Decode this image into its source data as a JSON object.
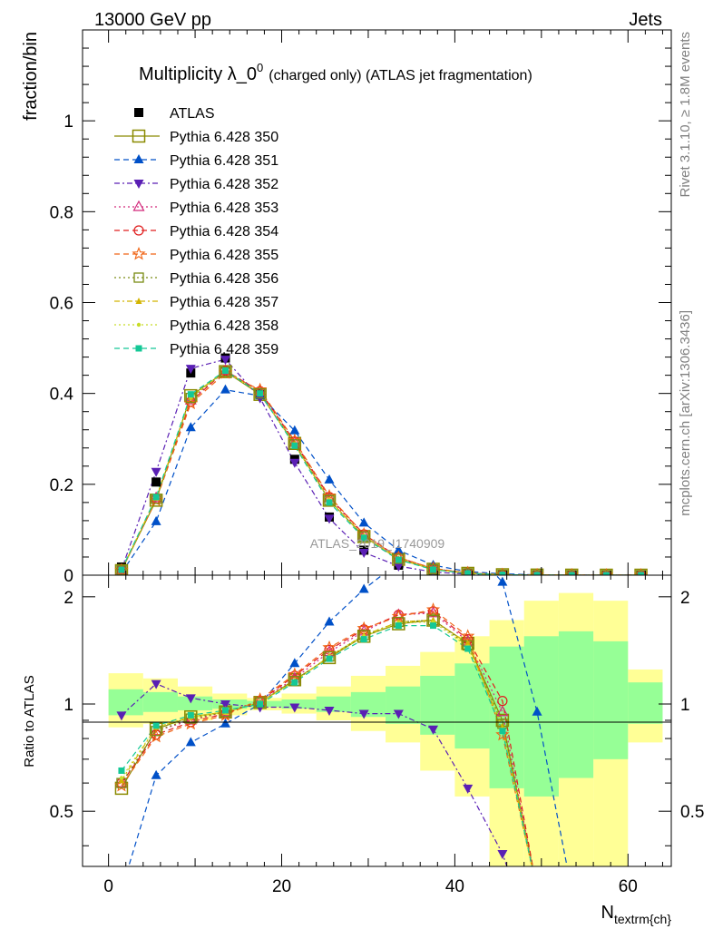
{
  "header": {
    "left": "13000 GeV pp",
    "right": "Jets"
  },
  "side_labels": {
    "rivet": "Rivet 3.1.10, ≥ 1.8M events",
    "mcplots": "mcplots.cern.ch [arXiv:1306.3436]"
  },
  "watermark": "ATLAS_2019_I1740909",
  "chart_data": {
    "type": "line",
    "title_main": "Multiplicity λ_0",
    "title_sup": "0",
    "title_suffix": "(charged only) (ATLAS jet fragmentation)",
    "xlabel_main": "N",
    "xlabel_sub": "textrm{ch}",
    "ylabel": "fraction/bin",
    "ratio_ylabel": "Ratio to ATLAS",
    "xlim": [
      -3,
      65
    ],
    "ylim": [
      0,
      1.2
    ],
    "ratio_ylim": [
      0.35,
      2.3
    ],
    "x_ticks": [
      "0",
      "20",
      "40",
      "60"
    ],
    "y_ticks": [
      "0",
      "0.2",
      "0.4",
      "0.6",
      "0.8",
      "1"
    ],
    "ratio_ticks": [
      "0.5",
      "1",
      "2"
    ],
    "x": [
      1.5,
      5.5,
      9.5,
      13.5,
      17.5,
      21.5,
      25.5,
      29.5,
      33.5,
      37.5,
      41.5,
      45.5,
      49.5,
      53.5,
      57.5,
      61.5
    ],
    "atlas": [
      0.018,
      0.205,
      0.445,
      0.478,
      0.398,
      0.255,
      0.128,
      0.055,
      0.022,
      0.008,
      0.003,
      0.001,
      0.0005,
      0.0003,
      0.0002,
      0.0001
    ],
    "band_edges": [
      0,
      4,
      8,
      12,
      16,
      20,
      24,
      28,
      32,
      36,
      40,
      44,
      48,
      52,
      56,
      60,
      64
    ],
    "band_yellow": [
      [
        0.86,
        1.22
      ],
      [
        0.88,
        1.18
      ],
      [
        0.9,
        1.12
      ],
      [
        0.93,
        1.07
      ],
      [
        0.96,
        1.04
      ],
      [
        0.94,
        1.07
      ],
      [
        0.9,
        1.12
      ],
      [
        0.84,
        1.2
      ],
      [
        0.78,
        1.28
      ],
      [
        0.65,
        1.4
      ],
      [
        0.55,
        1.55
      ],
      [
        0.35,
        1.72
      ],
      [
        0.35,
        1.95
      ],
      [
        0.35,
        2.05
      ],
      [
        0.35,
        1.95
      ],
      [
        0.78,
        1.25
      ]
    ],
    "band_green": [
      [
        0.93,
        1.1
      ],
      [
        0.95,
        1.08
      ],
      [
        0.96,
        1.05
      ],
      [
        0.97,
        1.03
      ],
      [
        0.98,
        1.02
      ],
      [
        0.97,
        1.03
      ],
      [
        0.95,
        1.05
      ],
      [
        0.92,
        1.08
      ],
      [
        0.88,
        1.12
      ],
      [
        0.82,
        1.2
      ],
      [
        0.75,
        1.3
      ],
      [
        0.58,
        1.45
      ],
      [
        0.55,
        1.55
      ],
      [
        0.62,
        1.6
      ],
      [
        0.7,
        1.5
      ],
      [
        0.88,
        1.15
      ]
    ],
    "series": [
      {
        "name": "ATLAS",
        "color": "#000000",
        "marker": "fsquare",
        "dash": "none",
        "values": [
          0.018,
          0.205,
          0.445,
          0.478,
          0.398,
          0.255,
          0.128,
          0.055,
          0.022,
          0.008,
          0.003,
          0.001,
          0.0005,
          0.0003,
          0.0002,
          0.0001
        ],
        "ratio": []
      },
      {
        "name": "Pythia 6.428 350",
        "color": "#8a8a00",
        "marker": "osquare_big",
        "dash": "none",
        "values": [
          0.01,
          0.165,
          0.395,
          0.448,
          0.398,
          0.29,
          0.165,
          0.085,
          0.035,
          0.013,
          0.004,
          0.001,
          0.0003,
          0.0001,
          0,
          0
        ],
        "ratio": [
          0.58,
          0.85,
          0.92,
          0.95,
          1.01,
          1.17,
          1.35,
          1.55,
          1.68,
          1.72,
          1.48,
          0.9,
          0.3,
          0.3,
          0.3,
          0.3
        ]
      },
      {
        "name": "Pythia 6.428 351",
        "color": "#0050c8",
        "marker": "ftri",
        "dash": "6,4",
        "values": [
          0.005,
          0.118,
          0.325,
          0.408,
          0.395,
          0.318,
          0.21,
          0.115,
          0.055,
          0.022,
          0.008,
          0.003,
          0.0008,
          0.0002,
          0,
          0
        ],
        "ratio": [
          0.3,
          0.63,
          0.78,
          0.88,
          1.0,
          1.3,
          1.7,
          2.1,
          2.5,
          2.8,
          2.8,
          2.2,
          0.95,
          0.3,
          0.3,
          0.3
        ]
      },
      {
        "name": "Pythia 6.428 352",
        "color": "#5a1fb4",
        "marker": "ftri_down",
        "dash": "6,3,2,3",
        "values": [
          0.012,
          0.228,
          0.455,
          0.475,
          0.39,
          0.248,
          0.125,
          0.05,
          0.02,
          0.007,
          0.002,
          0.0004,
          0,
          0,
          0,
          0
        ],
        "ratio": [
          0.93,
          1.14,
          1.04,
          1.0,
          0.98,
          0.98,
          0.96,
          0.94,
          0.94,
          0.85,
          0.58,
          0.38,
          0.2,
          0.2,
          0.2,
          0.2
        ]
      },
      {
        "name": "Pythia 6.428 353",
        "color": "#d2287a",
        "marker": "otri",
        "dash": "2,3",
        "values": [
          0.011,
          0.17,
          0.385,
          0.45,
          0.405,
          0.292,
          0.17,
          0.088,
          0.039,
          0.014,
          0.005,
          0.001,
          0.0003,
          0.0001,
          0,
          0
        ],
        "ratio": [
          0.6,
          0.84,
          0.9,
          0.95,
          1.02,
          1.18,
          1.4,
          1.6,
          1.78,
          1.8,
          1.5,
          0.95,
          0.3,
          0.3,
          0.3,
          0.3
        ]
      },
      {
        "name": "Pythia 6.428 354",
        "color": "#e01e1e",
        "marker": "ocircle",
        "dash": "6,4",
        "values": [
          0.011,
          0.168,
          0.382,
          0.45,
          0.405,
          0.294,
          0.172,
          0.09,
          0.039,
          0.014,
          0.005,
          0.001,
          0.0003,
          0.0001,
          0,
          0
        ],
        "ratio": [
          0.6,
          0.82,
          0.89,
          0.94,
          1.02,
          1.2,
          1.42,
          1.62,
          1.78,
          1.82,
          1.52,
          1.02,
          0.3,
          0.3,
          0.3,
          0.3
        ]
      },
      {
        "name": "Pythia 6.428 355",
        "color": "#f06414",
        "marker": "ostar",
        "dash": "6,4",
        "values": [
          0.011,
          0.165,
          0.378,
          0.445,
          0.408,
          0.296,
          0.174,
          0.09,
          0.039,
          0.015,
          0.005,
          0.001,
          0.0003,
          0.0001,
          0,
          0
        ],
        "ratio": [
          0.59,
          0.81,
          0.88,
          0.93,
          1.03,
          1.21,
          1.44,
          1.63,
          1.76,
          1.84,
          1.55,
          0.82,
          0.3,
          0.3,
          0.3,
          0.3
        ]
      },
      {
        "name": "Pythia 6.428 356",
        "color": "#7a8c14",
        "marker": "osquare",
        "dash": "2,3",
        "values": [
          0.011,
          0.168,
          0.39,
          0.448,
          0.4,
          0.288,
          0.165,
          0.085,
          0.036,
          0.013,
          0.004,
          0.001,
          0.0003,
          0.0001,
          0,
          0
        ],
        "ratio": [
          0.6,
          0.84,
          0.91,
          0.95,
          1.01,
          1.16,
          1.36,
          1.56,
          1.7,
          1.72,
          1.46,
          0.88,
          0.3,
          0.3,
          0.3,
          0.3
        ]
      },
      {
        "name": "Pythia 6.428 357",
        "color": "#d2b400",
        "marker": "ftri_small",
        "dash": "6,3,2,3",
        "values": [
          0.011,
          0.17,
          0.392,
          0.45,
          0.4,
          0.288,
          0.165,
          0.086,
          0.036,
          0.013,
          0.004,
          0.001,
          0.0003,
          0.0001,
          0,
          0
        ],
        "ratio": [
          0.61,
          0.86,
          0.92,
          0.95,
          1.01,
          1.16,
          1.36,
          1.56,
          1.7,
          1.72,
          1.48,
          0.86,
          0.3,
          0.3,
          0.3,
          0.3
        ]
      },
      {
        "name": "Pythia 6.428 358",
        "color": "#c8dc28",
        "marker": "fdot",
        "dash": "2,3",
        "values": [
          0.011,
          0.17,
          0.392,
          0.449,
          0.4,
          0.288,
          0.165,
          0.086,
          0.036,
          0.013,
          0.004,
          0.001,
          0.0003,
          0.0001,
          0,
          0
        ],
        "ratio": [
          0.62,
          0.86,
          0.92,
          0.95,
          1.01,
          1.16,
          1.36,
          1.55,
          1.69,
          1.7,
          1.45,
          0.85,
          0.3,
          0.3,
          0.3,
          0.3
        ]
      },
      {
        "name": "Pythia 6.428 359",
        "color": "#14c896",
        "marker": "fsquare_small",
        "dash": "6,4",
        "values": [
          0.012,
          0.172,
          0.398,
          0.45,
          0.4,
          0.285,
          0.16,
          0.082,
          0.034,
          0.012,
          0.004,
          0.001,
          0.0003,
          0.0001,
          0,
          0
        ],
        "ratio": [
          0.65,
          0.87,
          0.93,
          0.96,
          1.0,
          1.15,
          1.34,
          1.52,
          1.66,
          1.66,
          1.43,
          0.84,
          0.3,
          0.3,
          0.3,
          0.3
        ]
      }
    ]
  }
}
